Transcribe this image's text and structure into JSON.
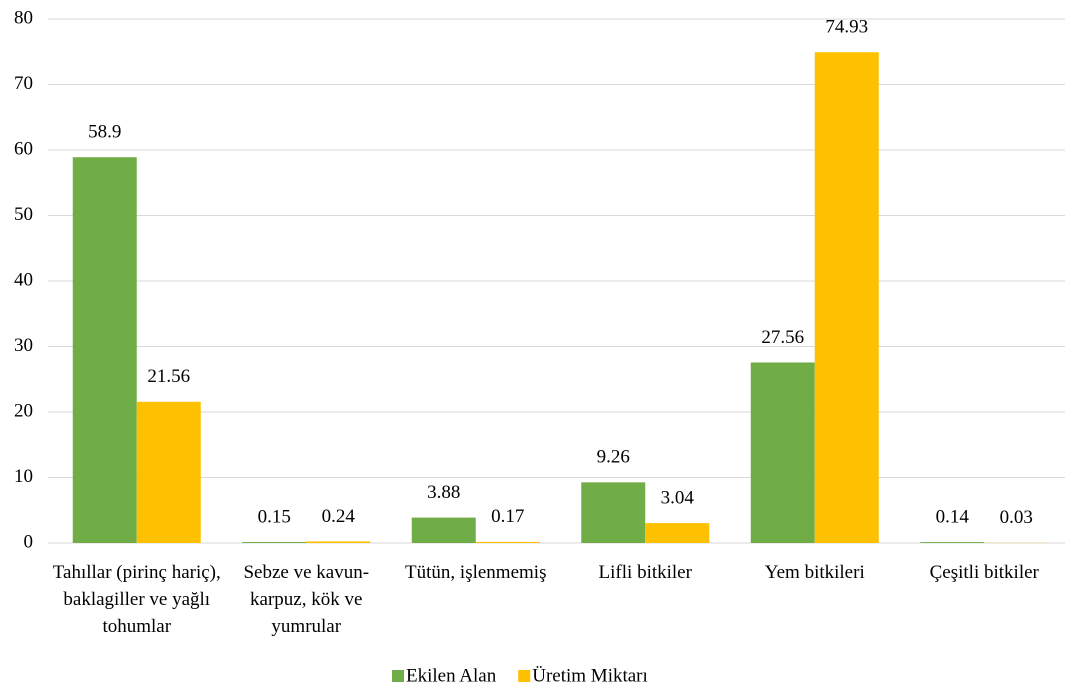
{
  "chart_data": {
    "type": "bar",
    "categories": [
      "Tahıllar (pirinç hariç), baklagiller ve yağlı tohumlar",
      "Sebze ve kavun-karpuz, kök ve yumrular",
      "Tütün, işlenmemiş",
      "Lifli bitkiler",
      "Yem bitkileri",
      "Çeşitli bitkiler"
    ],
    "series": [
      {
        "name": "Ekilen Alan",
        "color": "#70ad47",
        "values": [
          58.9,
          0.15,
          3.88,
          9.26,
          27.56,
          0.14
        ]
      },
      {
        "name": "Üretim Miktarı",
        "color": "#ffc000",
        "values": [
          21.56,
          0.24,
          0.17,
          3.04,
          74.93,
          0.03
        ]
      }
    ],
    "ylim": [
      0,
      80
    ],
    "yticks": [
      0,
      10,
      20,
      30,
      40,
      50,
      60,
      70,
      80
    ],
    "grid": true,
    "legend": "bottom"
  }
}
